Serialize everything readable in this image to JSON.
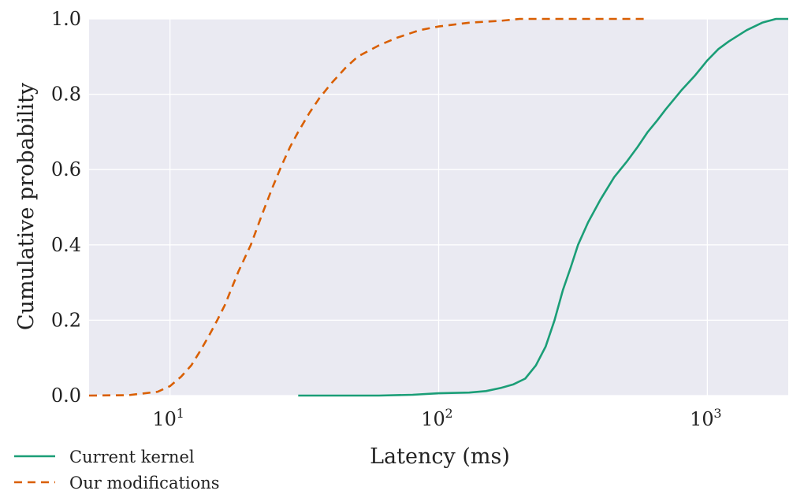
{
  "chart_data": {
    "type": "line",
    "title": "",
    "xlabel": "Latency (ms)",
    "ylabel": "Cumulative probability",
    "xscale": "log",
    "xlim": [
      5,
      2000
    ],
    "ylim": [
      0,
      1.0
    ],
    "x_ticks": [
      {
        "value": 10,
        "base": "10",
        "exp": "1"
      },
      {
        "value": 100,
        "base": "10",
        "exp": "2"
      },
      {
        "value": 1000,
        "base": "10",
        "exp": "3"
      }
    ],
    "y_ticks": [
      {
        "value": 0.0,
        "label": "0.0"
      },
      {
        "value": 0.2,
        "label": "0.2"
      },
      {
        "value": 0.4,
        "label": "0.4"
      },
      {
        "value": 0.6,
        "label": "0.6"
      },
      {
        "value": 0.8,
        "label": "0.8"
      },
      {
        "value": 1.0,
        "label": "1.0"
      }
    ],
    "grid": true,
    "legend_position": "bottom-left",
    "series": [
      {
        "name": "Current kernel",
        "color": "#1b9e77",
        "dash": "solid",
        "points": [
          [
            30,
            0.0
          ],
          [
            60,
            0.0
          ],
          [
            80,
            0.002
          ],
          [
            100,
            0.006
          ],
          [
            130,
            0.008
          ],
          [
            150,
            0.012
          ],
          [
            170,
            0.02
          ],
          [
            190,
            0.03
          ],
          [
            210,
            0.045
          ],
          [
            230,
            0.08
          ],
          [
            250,
            0.13
          ],
          [
            270,
            0.2
          ],
          [
            290,
            0.28
          ],
          [
            310,
            0.34
          ],
          [
            330,
            0.4
          ],
          [
            360,
            0.46
          ],
          [
            400,
            0.52
          ],
          [
            450,
            0.58
          ],
          [
            500,
            0.62
          ],
          [
            550,
            0.66
          ],
          [
            600,
            0.7
          ],
          [
            650,
            0.73
          ],
          [
            700,
            0.76
          ],
          [
            800,
            0.81
          ],
          [
            900,
            0.85
          ],
          [
            1000,
            0.89
          ],
          [
            1100,
            0.92
          ],
          [
            1200,
            0.94
          ],
          [
            1400,
            0.97
          ],
          [
            1600,
            0.99
          ],
          [
            1800,
            1.0
          ],
          [
            2000,
            1.0
          ]
        ]
      },
      {
        "name": "Our modifications",
        "color": "#d95f02",
        "dash": "dashed",
        "points": [
          [
            5,
            0.0
          ],
          [
            7,
            0.001
          ],
          [
            9,
            0.01
          ],
          [
            10,
            0.025
          ],
          [
            11,
            0.05
          ],
          [
            12,
            0.08
          ],
          [
            13,
            0.12
          ],
          [
            14,
            0.16
          ],
          [
            15,
            0.2
          ],
          [
            16,
            0.24
          ],
          [
            18,
            0.33
          ],
          [
            20,
            0.4
          ],
          [
            22,
            0.48
          ],
          [
            24,
            0.55
          ],
          [
            26,
            0.61
          ],
          [
            28,
            0.66
          ],
          [
            30,
            0.7
          ],
          [
            33,
            0.75
          ],
          [
            36,
            0.79
          ],
          [
            40,
            0.83
          ],
          [
            45,
            0.87
          ],
          [
            50,
            0.9
          ],
          [
            60,
            0.93
          ],
          [
            70,
            0.95
          ],
          [
            85,
            0.97
          ],
          [
            100,
            0.98
          ],
          [
            130,
            0.99
          ],
          [
            170,
            0.995
          ],
          [
            200,
            1.0
          ],
          [
            300,
            1.0
          ],
          [
            600,
            1.0
          ]
        ]
      }
    ]
  },
  "colors": {
    "plot_background": "#eaeaf2",
    "grid": "#ffffff",
    "text": "#222222"
  }
}
